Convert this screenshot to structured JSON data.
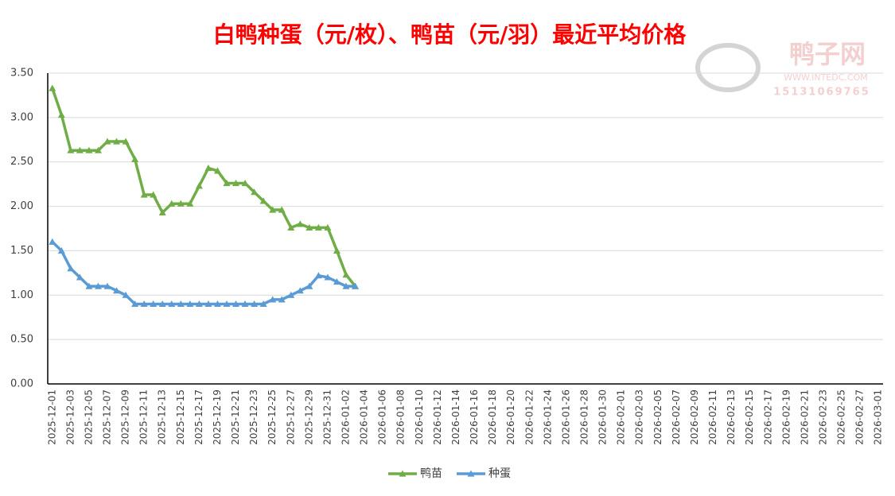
{
  "chart_data": {
    "type": "line",
    "title": "白鸭种蛋（元/枚）、鸭苗（元/羽）最近平均价格",
    "watermark": {
      "name": "鸭子网",
      "url": "WWW.INTEDC.COM",
      "phone": "15131069765"
    },
    "categories": [
      "2025-12-01",
      null,
      "2025-12-03",
      null,
      "2025-12-05",
      null,
      "2025-12-07",
      null,
      "2025-12-09",
      null,
      "2025-12-11",
      null,
      "2025-12-13",
      null,
      "2025-12-15",
      null,
      "2025-12-17",
      null,
      "2025-12-19",
      null,
      "2025-12-21",
      null,
      "2025-12-23",
      null,
      "2025-12-25",
      null,
      "2025-12-27",
      null,
      "2025-12-29",
      null,
      "2025-12-31",
      null,
      "2026-01-02",
      null,
      "2026-01-04",
      null,
      "2026-01-06",
      null,
      "2026-01-08",
      null,
      "2026-01-10",
      null,
      "2026-01-12",
      null,
      "2026-01-14",
      null,
      "2026-01-16",
      null,
      "2026-01-18",
      null,
      "2026-01-20",
      null,
      "2026-01-22",
      null,
      "2026-01-24",
      null,
      "2026-01-26",
      null,
      "2026-01-28",
      null,
      "2026-01-30",
      null,
      "2026-02-01",
      null,
      "2026-02-03",
      null,
      "2026-02-05",
      null,
      "2026-02-07",
      null,
      "2026-02-09",
      null,
      "2026-02-11",
      null,
      "2026-02-13",
      null,
      "2026-02-15",
      null,
      "2026-02-17",
      null,
      "2026-02-19",
      null,
      "2026-02-21",
      null,
      "2026-02-23",
      null,
      "2026-02-25",
      null,
      "2026-02-27",
      null,
      "2026-03-01"
    ],
    "series": [
      {
        "name": "鸭苗",
        "color": "#70ad47",
        "values": [
          3.33,
          3.03,
          2.63,
          2.63,
          2.63,
          2.63,
          2.73,
          2.73,
          2.73,
          2.53,
          2.13,
          2.13,
          1.93,
          2.03,
          2.03,
          2.03,
          2.23,
          2.43,
          2.4,
          2.26,
          2.26,
          2.26,
          2.16,
          2.06,
          1.96,
          1.96,
          1.76,
          1.8,
          1.76,
          1.76,
          1.76,
          1.5,
          1.23,
          1.1,
          null,
          null,
          null,
          null,
          null,
          null,
          null,
          null,
          null,
          null,
          null,
          null,
          null,
          null,
          null,
          null,
          null,
          null,
          null,
          null,
          null,
          null,
          null,
          null,
          null,
          null,
          null,
          null,
          null,
          null,
          null,
          null,
          null,
          null,
          null,
          null,
          null,
          null,
          null,
          null,
          null,
          null,
          null,
          null,
          null,
          null,
          null,
          null,
          null,
          null,
          null,
          null,
          null,
          null,
          null,
          null,
          null
        ]
      },
      {
        "name": "种蛋",
        "color": "#5b9bd5",
        "values": [
          1.6,
          1.5,
          1.3,
          1.2,
          1.1,
          1.1,
          1.1,
          1.05,
          1.0,
          0.9,
          0.9,
          0.9,
          0.9,
          0.9,
          0.9,
          0.9,
          0.9,
          0.9,
          0.9,
          0.9,
          0.9,
          0.9,
          0.9,
          0.9,
          0.95,
          0.95,
          1.0,
          1.05,
          1.1,
          1.22,
          1.2,
          1.15,
          1.1,
          1.1,
          null,
          null,
          null,
          null,
          null,
          null,
          null,
          null,
          null,
          null,
          null,
          null,
          null,
          null,
          null,
          null,
          null,
          null,
          null,
          null,
          null,
          null,
          null,
          null,
          null,
          null,
          null,
          null,
          null,
          null,
          null,
          null,
          null,
          null,
          null,
          null,
          null,
          null,
          null,
          null,
          null,
          null,
          null,
          null,
          null,
          null,
          null,
          null,
          null,
          null,
          null,
          null,
          null,
          null,
          null,
          null,
          null
        ]
      }
    ],
    "ylim": [
      0,
      3.5
    ],
    "yticks": [
      {
        "value": 0,
        "label": "0.00"
      },
      {
        "value": 0.5,
        "label": "0.50"
      },
      {
        "value": 1,
        "label": "1.00"
      },
      {
        "value": 1.5,
        "label": "1.50"
      },
      {
        "value": 2,
        "label": "2.00"
      },
      {
        "value": 2.5,
        "label": "2.50"
      },
      {
        "value": 3,
        "label": "3.00"
      },
      {
        "value": 3.5,
        "label": "3.50"
      }
    ],
    "grid": true,
    "legend": "bottom"
  }
}
